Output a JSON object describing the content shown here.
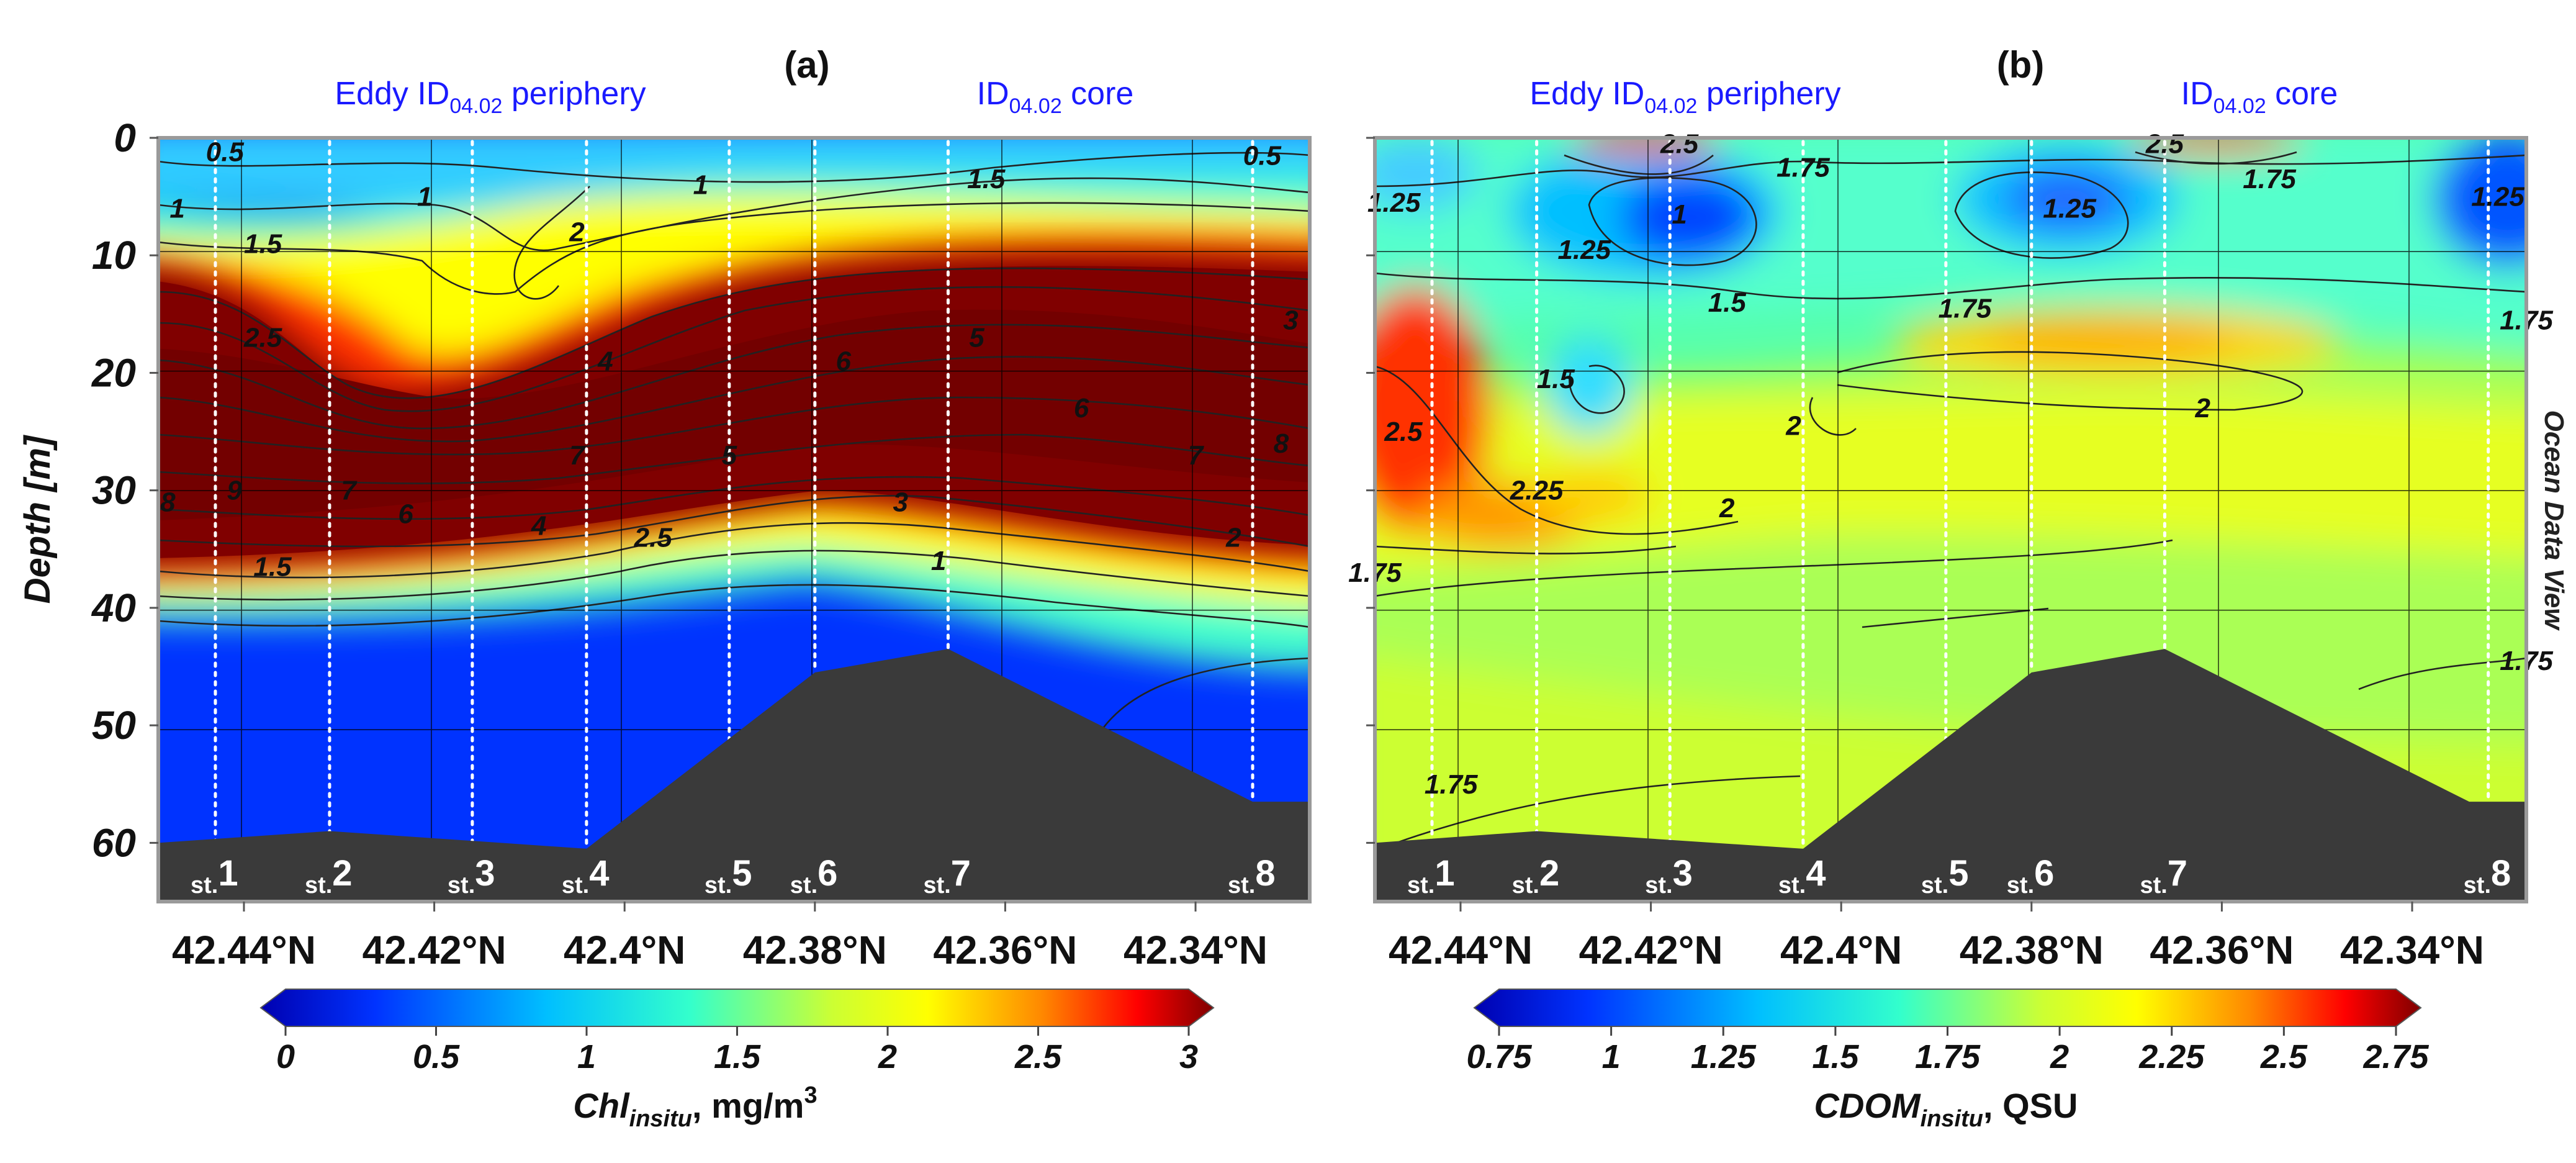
{
  "figure": {
    "watermark": "Ocean Data View",
    "ylabel": "Depth [m]"
  },
  "chart_data": [
    {
      "type": "heatmap",
      "panel_label": "(a)",
      "annotation_left": {
        "text": "Eddy ID",
        "sub": "04.02",
        "tail": " periphery"
      },
      "annotation_right": {
        "text": "ID",
        "sub": "04.02",
        "tail": " core"
      },
      "xlabel": "",
      "x_ticks": [
        "42.44°N",
        "42.42°N",
        "42.4°N",
        "42.38°N",
        "42.36°N",
        "42.34°N"
      ],
      "x_tick_values": [
        42.44,
        42.42,
        42.4,
        42.38,
        42.36,
        42.34
      ],
      "xlim": [
        42.449,
        42.328
      ],
      "ylabel": "Depth [m]",
      "y_ticks": [
        0,
        10,
        20,
        30,
        40,
        50,
        60
      ],
      "ylim": [
        0,
        65
      ],
      "y_inverted": true,
      "grid": true,
      "stations": [
        {
          "prefix": "st.",
          "num": "1",
          "lat": 42.443,
          "max_depth": 60
        },
        {
          "prefix": "st.",
          "num": "2",
          "lat": 42.431,
          "max_depth": 59
        },
        {
          "prefix": "st.",
          "num": "3",
          "lat": 42.416,
          "max_depth": 60
        },
        {
          "prefix": "st.",
          "num": "4",
          "lat": 42.404,
          "max_depth": 60.5
        },
        {
          "prefix": "st.",
          "num": "5",
          "lat": 42.389,
          "max_depth": 52
        },
        {
          "prefix": "st.",
          "num": "6",
          "lat": 42.38,
          "max_depth": 45.5
        },
        {
          "prefix": "st.",
          "num": "7",
          "lat": 42.366,
          "max_depth": 43.5
        },
        {
          "prefix": "st.",
          "num": "8",
          "lat": 42.334,
          "max_depth": 56.5
        }
      ],
      "bottom_profile": [
        [
          42.449,
          60
        ],
        [
          42.431,
          59
        ],
        [
          42.404,
          60.5
        ],
        [
          42.38,
          45.5
        ],
        [
          42.366,
          43.5
        ],
        [
          42.334,
          56.5
        ],
        [
          42.328,
          56.5
        ]
      ],
      "contour_labels": [
        {
          "text": "0.5",
          "lat": 42.442,
          "depth": 1.2
        },
        {
          "text": "1",
          "lat": 42.447,
          "depth": 6
        },
        {
          "text": "1.5",
          "lat": 42.438,
          "depth": 9
        },
        {
          "text": "1",
          "lat": 42.421,
          "depth": 5
        },
        {
          "text": "2",
          "lat": 42.405,
          "depth": 8
        },
        {
          "text": "1",
          "lat": 42.392,
          "depth": 4
        },
        {
          "text": "1.5",
          "lat": 42.362,
          "depth": 3.5
        },
        {
          "text": "0.5",
          "lat": 42.333,
          "depth": 1.5
        },
        {
          "text": "3",
          "lat": 42.33,
          "depth": 15.5
        },
        {
          "text": "2.5",
          "lat": 42.438,
          "depth": 17
        },
        {
          "text": "4",
          "lat": 42.402,
          "depth": 19
        },
        {
          "text": "6",
          "lat": 42.377,
          "depth": 19
        },
        {
          "text": "5",
          "lat": 42.363,
          "depth": 17
        },
        {
          "text": "6",
          "lat": 42.352,
          "depth": 23
        },
        {
          "text": "7",
          "lat": 42.34,
          "depth": 27
        },
        {
          "text": "8",
          "lat": 42.331,
          "depth": 26
        },
        {
          "text": "7",
          "lat": 42.405,
          "depth": 27
        },
        {
          "text": "5",
          "lat": 42.389,
          "depth": 27
        },
        {
          "text": "3",
          "lat": 42.371,
          "depth": 31
        },
        {
          "text": "8",
          "lat": 42.448,
          "depth": 31
        },
        {
          "text": "9",
          "lat": 42.441,
          "depth": 30
        },
        {
          "text": "7",
          "lat": 42.429,
          "depth": 30
        },
        {
          "text": "6",
          "lat": 42.423,
          "depth": 32
        },
        {
          "text": "4",
          "lat": 42.409,
          "depth": 33
        },
        {
          "text": "2.5",
          "lat": 42.397,
          "depth": 34
        },
        {
          "text": "1.5",
          "lat": 42.437,
          "depth": 36.5
        },
        {
          "text": "1",
          "lat": 42.367,
          "depth": 36
        },
        {
          "text": "2",
          "lat": 42.336,
          "depth": 34
        }
      ],
      "colorbar": {
        "ticks": [
          "0",
          "0.5",
          "1",
          "1.5",
          "2",
          "2.5",
          "3"
        ],
        "range": [
          0,
          3
        ],
        "title": "Chl",
        "title_sub": "insitu",
        "title_tail": ", mg/m",
        "title_sup": "3"
      }
    },
    {
      "type": "heatmap",
      "panel_label": "(b)",
      "annotation_left": {
        "text": "Eddy ID",
        "sub": "04.02",
        "tail": " periphery"
      },
      "annotation_right": {
        "text": "ID",
        "sub": "04.02",
        "tail": " core"
      },
      "xlabel": "",
      "x_ticks": [
        "42.44°N",
        "42.42°N",
        "42.4°N",
        "42.38°N",
        "42.36°N",
        "42.34°N"
      ],
      "x_tick_values": [
        42.44,
        42.42,
        42.4,
        42.38,
        42.36,
        42.34
      ],
      "xlim": [
        42.449,
        42.328
      ],
      "y_ticks": [
        0,
        10,
        20,
        30,
        40,
        50,
        60
      ],
      "ylim": [
        0,
        65
      ],
      "y_inverted": true,
      "grid": true,
      "stations": [
        {
          "prefix": "st.",
          "num": "1",
          "lat": 42.443,
          "max_depth": 60
        },
        {
          "prefix": "st.",
          "num": "2",
          "lat": 42.432,
          "max_depth": 59
        },
        {
          "prefix": "st.",
          "num": "3",
          "lat": 42.418,
          "max_depth": 60
        },
        {
          "prefix": "st.",
          "num": "4",
          "lat": 42.404,
          "max_depth": 60.5
        },
        {
          "prefix": "st.",
          "num": "5",
          "lat": 42.389,
          "max_depth": 52
        },
        {
          "prefix": "st.",
          "num": "6",
          "lat": 42.38,
          "max_depth": 45.5
        },
        {
          "prefix": "st.",
          "num": "7",
          "lat": 42.366,
          "max_depth": 43.5
        },
        {
          "prefix": "st.",
          "num": "8",
          "lat": 42.332,
          "max_depth": 56.5
        }
      ],
      "bottom_profile": [
        [
          42.449,
          60
        ],
        [
          42.432,
          59
        ],
        [
          42.404,
          60.5
        ],
        [
          42.38,
          45.5
        ],
        [
          42.366,
          43.5
        ],
        [
          42.334,
          56.5
        ],
        [
          42.328,
          56.5
        ]
      ],
      "contour_labels": [
        {
          "text": "2.5",
          "lat": 42.417,
          "depth": 0.5
        },
        {
          "text": "1.75",
          "lat": 42.404,
          "depth": 2.5
        },
        {
          "text": "2.5",
          "lat": 42.366,
          "depth": 0.5
        },
        {
          "text": "1.75",
          "lat": 42.355,
          "depth": 3.5
        },
        {
          "text": "1.25",
          "lat": 42.447,
          "depth": 5.5
        },
        {
          "text": "1.25",
          "lat": 42.427,
          "depth": 9.5
        },
        {
          "text": "1",
          "lat": 42.417,
          "depth": 6.5
        },
        {
          "text": "1.25",
          "lat": 42.376,
          "depth": 6
        },
        {
          "text": "1.25",
          "lat": 42.331,
          "depth": 5
        },
        {
          "text": "1.5",
          "lat": 42.412,
          "depth": 14
        },
        {
          "text": "1.75",
          "lat": 42.387,
          "depth": 14.5
        },
        {
          "text": "1.75",
          "lat": 42.328,
          "depth": 15.5
        },
        {
          "text": "1.5",
          "lat": 42.43,
          "depth": 20.5
        },
        {
          "text": "2",
          "lat": 42.405,
          "depth": 24.5
        },
        {
          "text": "2",
          "lat": 42.362,
          "depth": 23
        },
        {
          "text": "2.5",
          "lat": 42.446,
          "depth": 25
        },
        {
          "text": "2.25",
          "lat": 42.432,
          "depth": 30
        },
        {
          "text": "2",
          "lat": 42.412,
          "depth": 31.5
        },
        {
          "text": "1.75",
          "lat": 42.449,
          "depth": 37
        },
        {
          "text": "1.75",
          "lat": 42.328,
          "depth": 44.5
        },
        {
          "text": "1.75",
          "lat": 42.441,
          "depth": 55
        }
      ],
      "colorbar": {
        "ticks": [
          "0.75",
          "1",
          "1.25",
          "1.5",
          "1.75",
          "2",
          "2.25",
          "2.5",
          "2.75"
        ],
        "range": [
          0.75,
          2.75
        ],
        "title": "CDOM",
        "title_sub": "insitu",
        "title_tail": ", QSU",
        "title_sup": ""
      }
    }
  ]
}
